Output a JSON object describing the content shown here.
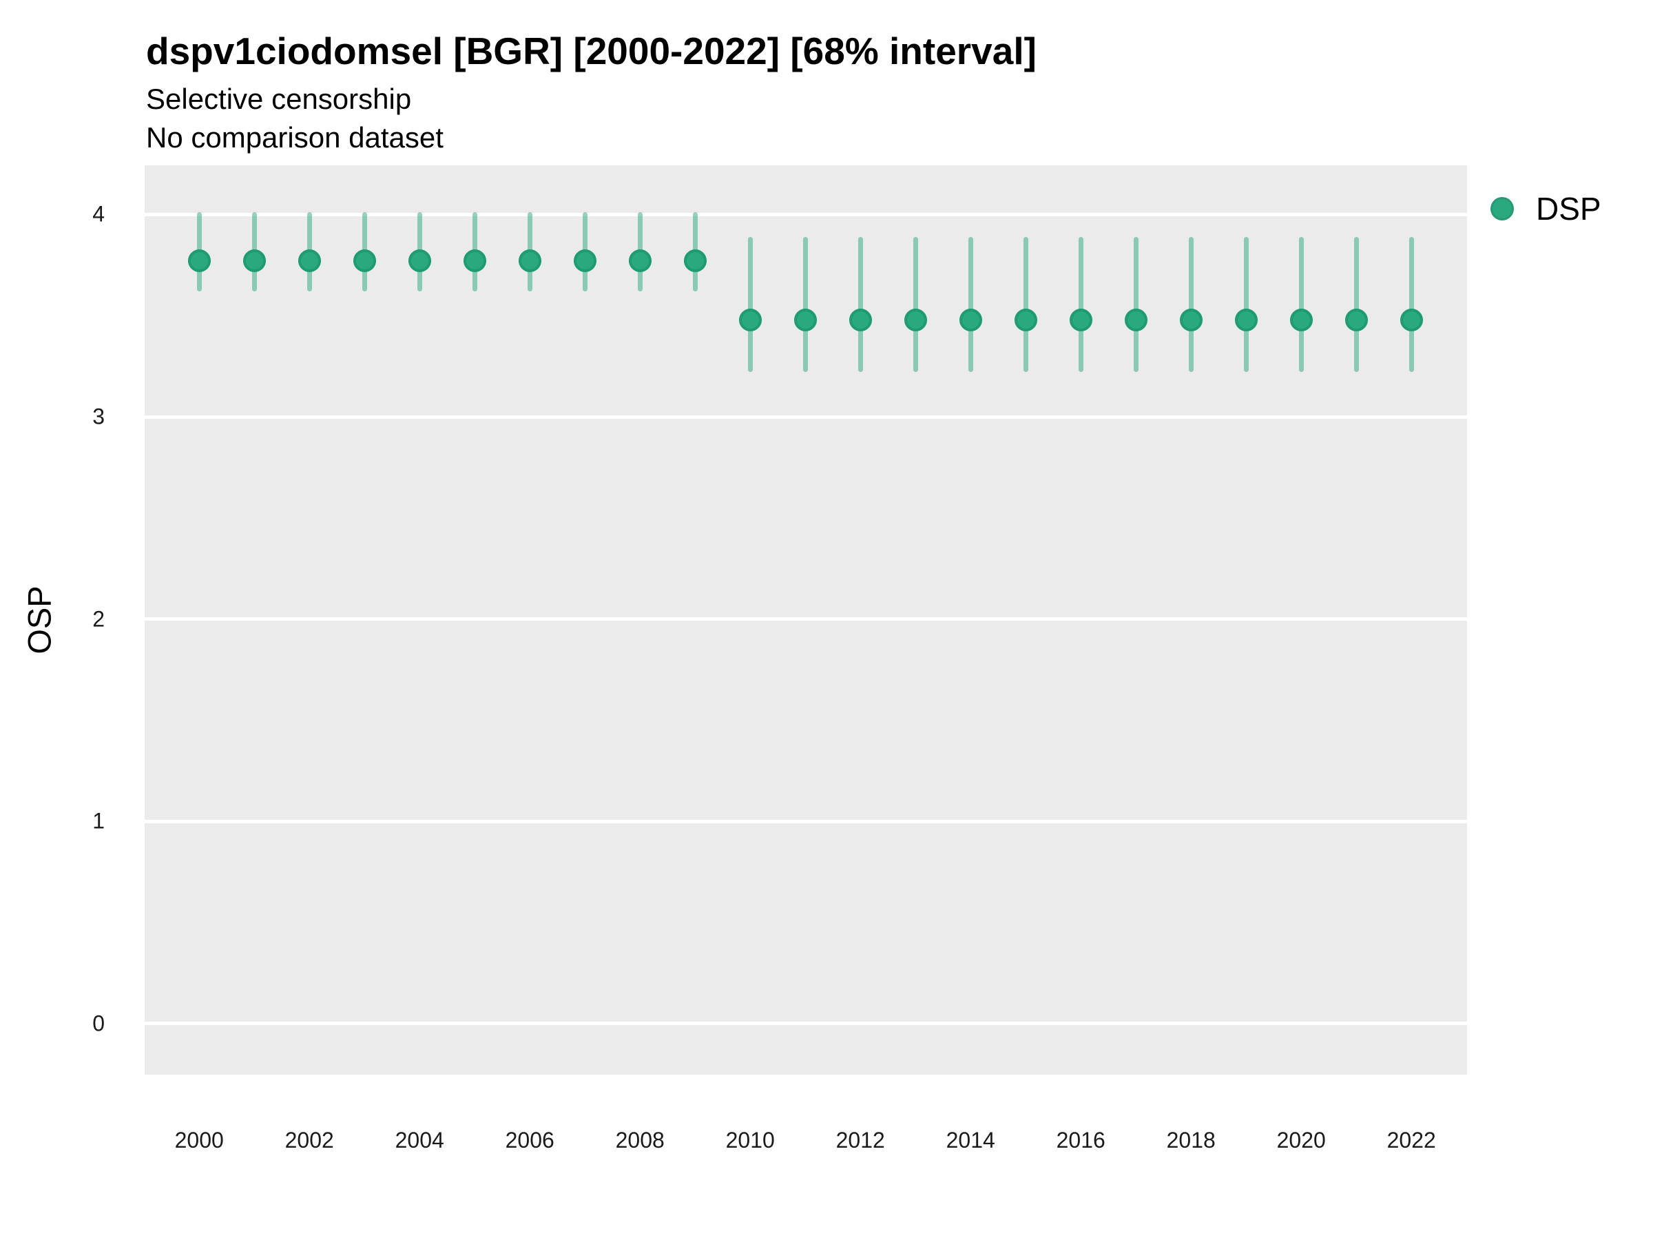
{
  "header": {
    "title": "dspv1ciodomsel [BGR] [2000-2022] [68% interval]",
    "subtitle1": "Selective censorship",
    "subtitle2": "No comparison dataset"
  },
  "legend": {
    "position": "right",
    "items": [
      {
        "label": "DSP",
        "color": "#2aa87e"
      }
    ]
  },
  "axes": {
    "y_label": "OSP",
    "y_ticks": [
      4,
      3,
      2,
      1,
      0
    ],
    "x_ticks": [
      2000,
      2002,
      2004,
      2006,
      2008,
      2010,
      2012,
      2014,
      2016,
      2018,
      2020,
      2022
    ]
  },
  "colors": {
    "panel_bg": "#ebebeb",
    "gridline": "#ffffff",
    "point_fill": "#2aa87e",
    "point_edge": "#1e9c70",
    "interval_color": "#2aa87e",
    "interval_opacity": 0.5,
    "text": "#000000"
  },
  "chart_data": {
    "type": "scatter",
    "subtype": "point-estimates-with-interval-bars",
    "title": "dspv1ciodomsel [BGR] [2000-2022] [68% interval]",
    "subtitle": "Selective censorship / No comparison dataset",
    "xlabel": "",
    "ylabel": "OSP",
    "interval_level": "68%",
    "grid": "major-horizontal-white-on-gray",
    "legend_position": "right",
    "xlim": [
      1999.01,
      2023.01
    ],
    "ylim": [
      -0.252,
      4.243
    ],
    "series": [
      {
        "name": "DSP",
        "points": [
          {
            "year": 2000,
            "est": 3.77,
            "lo": 3.62,
            "hi": 4.01
          },
          {
            "year": 2001,
            "est": 3.77,
            "lo": 3.62,
            "hi": 4.01
          },
          {
            "year": 2002,
            "est": 3.77,
            "lo": 3.62,
            "hi": 4.01
          },
          {
            "year": 2003,
            "est": 3.77,
            "lo": 3.62,
            "hi": 4.01
          },
          {
            "year": 2004,
            "est": 3.77,
            "lo": 3.62,
            "hi": 4.01
          },
          {
            "year": 2005,
            "est": 3.77,
            "lo": 3.62,
            "hi": 4.01
          },
          {
            "year": 2006,
            "est": 3.77,
            "lo": 3.62,
            "hi": 4.01
          },
          {
            "year": 2007,
            "est": 3.77,
            "lo": 3.62,
            "hi": 4.01
          },
          {
            "year": 2008,
            "est": 3.77,
            "lo": 3.62,
            "hi": 4.01
          },
          {
            "year": 2009,
            "est": 3.77,
            "lo": 3.62,
            "hi": 4.01
          },
          {
            "year": 2010,
            "est": 3.48,
            "lo": 3.22,
            "hi": 3.89
          },
          {
            "year": 2011,
            "est": 3.48,
            "lo": 3.22,
            "hi": 3.89
          },
          {
            "year": 2012,
            "est": 3.48,
            "lo": 3.22,
            "hi": 3.89
          },
          {
            "year": 2013,
            "est": 3.48,
            "lo": 3.22,
            "hi": 3.89
          },
          {
            "year": 2014,
            "est": 3.48,
            "lo": 3.22,
            "hi": 3.89
          },
          {
            "year": 2015,
            "est": 3.48,
            "lo": 3.22,
            "hi": 3.89
          },
          {
            "year": 2016,
            "est": 3.48,
            "lo": 3.22,
            "hi": 3.89
          },
          {
            "year": 2017,
            "est": 3.48,
            "lo": 3.22,
            "hi": 3.89
          },
          {
            "year": 2018,
            "est": 3.48,
            "lo": 3.22,
            "hi": 3.89
          },
          {
            "year": 2019,
            "est": 3.48,
            "lo": 3.22,
            "hi": 3.89
          },
          {
            "year": 2020,
            "est": 3.48,
            "lo": 3.22,
            "hi": 3.89
          },
          {
            "year": 2021,
            "est": 3.48,
            "lo": 3.22,
            "hi": 3.89
          },
          {
            "year": 2022,
            "est": 3.48,
            "lo": 3.22,
            "hi": 3.89
          }
        ]
      }
    ]
  }
}
